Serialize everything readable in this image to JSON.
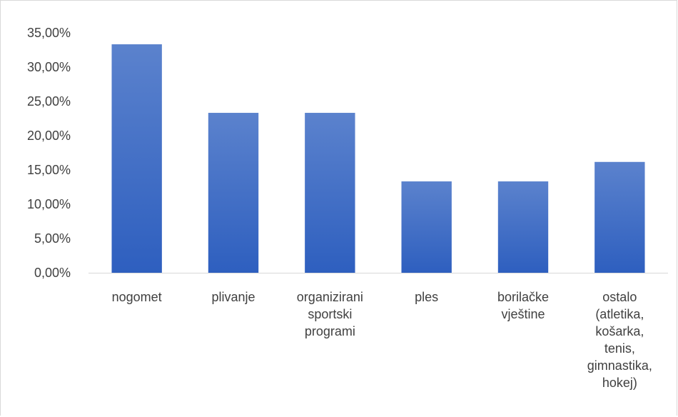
{
  "chart_data": {
    "type": "bar",
    "categories": [
      [
        "nogomet"
      ],
      [
        "plivanje"
      ],
      [
        "organizirani",
        "sportski",
        "programi"
      ],
      [
        "ples"
      ],
      [
        "borilačke",
        "vještine"
      ],
      [
        "ostalo",
        "(atletika,",
        "košarka,",
        "tenis,",
        "gimnastika,",
        "hokej)"
      ]
    ],
    "values": [
      33.33,
      23.33,
      23.33,
      13.33,
      13.33,
      16.17
    ],
    "ylim": [
      0,
      35
    ],
    "ytick_step": 5,
    "ytick_labels": [
      "0,00%",
      "5,00%",
      "10,00%",
      "15,00%",
      "20,00%",
      "25,00%",
      "30,00%",
      "35,00%"
    ],
    "title": "",
    "xlabel": "",
    "ylabel": "",
    "grid": false,
    "colors": {
      "bar_top": "#5b82cd",
      "bar_bottom": "#2e5fbf",
      "axis": "#d9d9d9",
      "text": "#404040"
    }
  }
}
